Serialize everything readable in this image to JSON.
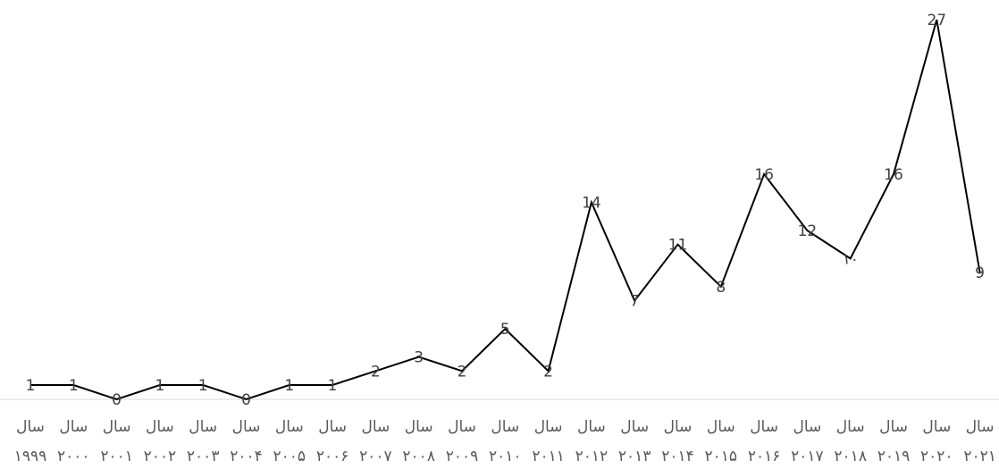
{
  "chart_data": {
    "type": "line",
    "title": "",
    "xlabel": "",
    "ylabel": "",
    "categories": [
      "سال ۱۹۹۹",
      "سال ۲۰۰۰",
      "سال ۲۰۰۱",
      "سال ۲۰۰۲",
      "سال ۲۰۰۳",
      "سال ۲۰۰۴",
      "سال ۲۰۰۵",
      "سال ۲۰۰۶",
      "سال ۲۰۰۷",
      "سال ۲۰۰۸",
      "سال ۲۰۰۹",
      "سال ۲۰۱۰",
      "سال ۲۰۱۱",
      "سال ۲۰۱۲",
      "سال ۲۰۱۳",
      "سال ۲۰۱۴",
      "سال ۲۰۱۵",
      "سال ۲۰۱۶",
      "سال ۲۰۱۷",
      "سال ۲۰۱۸",
      "سال ۲۰۱۹",
      "سال ۲۰۲۰",
      "سال ۲۰۲۱"
    ],
    "tick_top": "سال",
    "tick_bottom": [
      "۱۹۹۹",
      "۲۰۰۰",
      "۲۰۰۱",
      "۲۰۰۲",
      "۲۰۰۳",
      "۲۰۰۴",
      "۲۰۰۵",
      "۲۰۰۶",
      "۲۰۰۷",
      "۲۰۰۸",
      "۲۰۰۹",
      "۲۰۱۰",
      "۲۰۱۱",
      "۲۰۱۲",
      "۲۰۱۳",
      "۲۰۱۴",
      "۲۰۱۵",
      "۲۰۱۶",
      "۲۰۱۷",
      "۲۰۱۸",
      "۲۰۱۹",
      "۲۰۲۰",
      "۲۰۲۱"
    ],
    "values": [
      1,
      1,
      0,
      1,
      1,
      0,
      1,
      1,
      2,
      3,
      2,
      5,
      2,
      14,
      7,
      11,
      8,
      16,
      12,
      10,
      16,
      27,
      9
    ],
    "data_labels": [
      "1",
      "1",
      "0",
      "1",
      "1",
      "0",
      "1",
      "1",
      "2",
      "3",
      "2",
      "5",
      "2",
      "14",
      "7",
      "11",
      "8",
      "16",
      "12",
      "۱۰",
      "16",
      "27",
      "9"
    ],
    "ylim": [
      -1,
      28
    ],
    "grid": false,
    "legend": "none",
    "colors": {
      "line": "#000000",
      "axis": "#d9d9d9",
      "label": "#404040",
      "tick": "#595959"
    }
  }
}
